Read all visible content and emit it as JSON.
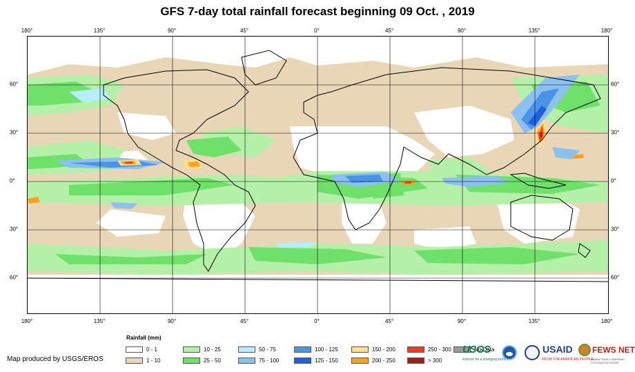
{
  "title": "GFS 7-day total rainfall forecast beginning 09 Oct. , 2019",
  "axes": {
    "lon_labels": [
      "180°",
      "135°",
      "90°",
      "45°",
      "0°",
      "45°",
      "90°",
      "135°",
      "180°"
    ],
    "lat_labels": [
      "60°",
      "30°",
      "0°",
      "30°",
      "60°"
    ]
  },
  "legend": {
    "title": "Rainfall (mm)",
    "items": [
      {
        "label": "0 - 1",
        "color": "#ffffff"
      },
      {
        "label": "1 - 10",
        "color": "#e8d6b6"
      },
      {
        "label": "10 - 25",
        "color": "#b4f0a8"
      },
      {
        "label": "25 - 50",
        "color": "#6fe06a"
      },
      {
        "label": "50 - 75",
        "color": "#b6eeff"
      },
      {
        "label": "75 - 100",
        "color": "#8cc0ef"
      },
      {
        "label": "100 - 125",
        "color": "#4a94e8"
      },
      {
        "label": "125 - 150",
        "color": "#1f5fe0"
      },
      {
        "label": "150 - 200",
        "color": "#ffe08a"
      },
      {
        "label": "200 - 250",
        "color": "#ffa21a"
      },
      {
        "label": "250 - 300",
        "color": "#ff3a1a"
      },
      {
        "label": "> 300",
        "color": "#a71c1c"
      },
      {
        "label": "No Data",
        "color": "#9a9a9a"
      }
    ]
  },
  "credit": "Map produced by USGS/EROS",
  "logos": {
    "usgs": "USGS",
    "usgs_tagline": "science for a changing world",
    "usaid": "USAID",
    "usaid_tagline": "FROM THE AMERICAN PEOPLE",
    "fews": "FEWS NET",
    "fews_tagline": "FAMINE EARLY WARNING SYSTEMS NETWORK",
    "noaa_icon": "noaa-seal-icon",
    "dhs_icon": "dhs-seal-icon",
    "fews_icon": "fews-globe-icon"
  }
}
